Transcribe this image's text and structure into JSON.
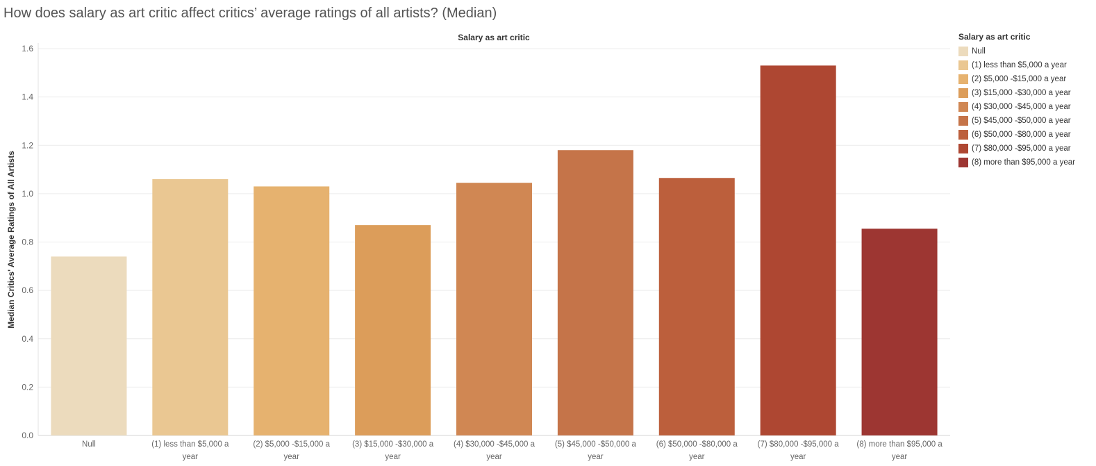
{
  "title": "How does salary as art critic affect critics’ average ratings of all artists? (Median)",
  "chart_data": {
    "type": "bar",
    "header": "Salary as art critic",
    "ylabel": "Median Critics' Average Ratings of All Artists",
    "ylim": [
      0,
      1.6
    ],
    "yticks": [
      "0.0",
      "0.2",
      "0.4",
      "0.6",
      "0.8",
      "1.0",
      "1.2",
      "1.4",
      "1.6"
    ],
    "categories": [
      "Null",
      "(1) less than $5,000 a year",
      "(2) $5,000 -$15,000 a year",
      "(3) $15,000 -$30,000 a year",
      "(4) $30,000 -$45,000 a year",
      "(5) $45,000 -$50,000 a year",
      "(6) $50,000 -$80,000 a year",
      "(7) $80,000 -$95,000 a year",
      "(8) more than $95,000 a year"
    ],
    "tick_labels": [
      [
        "Null"
      ],
      [
        "(1) less than $5,000 a",
        "year"
      ],
      [
        "(2) $5,000 -$15,000 a",
        "year"
      ],
      [
        "(3) $15,000 -$30,000 a",
        "year"
      ],
      [
        "(4) $30,000 -$45,000 a",
        "year"
      ],
      [
        "(5) $45,000 -$50,000 a",
        "year"
      ],
      [
        "(6) $50,000 -$80,000 a",
        "year"
      ],
      [
        "(7) $80,000 -$95,000 a",
        "year"
      ],
      [
        "(8) more than $95,000 a",
        "year"
      ]
    ],
    "values": [
      0.74,
      1.06,
      1.03,
      0.87,
      1.045,
      1.18,
      1.065,
      1.53,
      0.855
    ],
    "colors": [
      "#ecdbbd",
      "#eac792",
      "#e6b26f",
      "#dc9d5a",
      "#d08753",
      "#c57449",
      "#bc5f3c",
      "#ae4732",
      "#9d3632"
    ],
    "grid": true,
    "legend_position": "right"
  },
  "legend": {
    "title": "Salary as art critic",
    "items": [
      "Null",
      "(1) less than $5,000 a year",
      "(2) $5,000 -$15,000 a year",
      "(3) $15,000 -$30,000 a year",
      "(4) $30,000 -$45,000 a year",
      "(5) $45,000 -$50,000 a year",
      "(6) $50,000 -$80,000 a year",
      "(7) $80,000 -$95,000 a year",
      "(8) more than $95,000 a year"
    ]
  }
}
